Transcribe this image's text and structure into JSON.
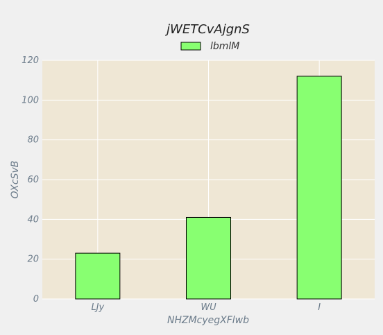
{
  "chart_data": {
    "type": "bar",
    "title": "jWETCvAjgnS",
    "xlabel": "NHZMcyegXFlwb",
    "ylabel": "OXcSvB",
    "categories": [
      "LJy",
      "WU",
      "I"
    ],
    "series": [
      {
        "name": "lbmlM",
        "values": [
          23,
          41,
          112
        ]
      }
    ],
    "ylim": [
      0,
      120
    ],
    "yticks": [
      0,
      20,
      40,
      60,
      80,
      100,
      120
    ],
    "grid": true,
    "legend": "top-center",
    "colors": {
      "bar_fill": "#88ff71",
      "bar_edge": "#000000",
      "plot_bg": "#efe7d5",
      "figure_bg": "#f0f0f0",
      "grid": "#ffffff",
      "tick_text": "#6b7b8a",
      "title_text": "#222222"
    }
  }
}
